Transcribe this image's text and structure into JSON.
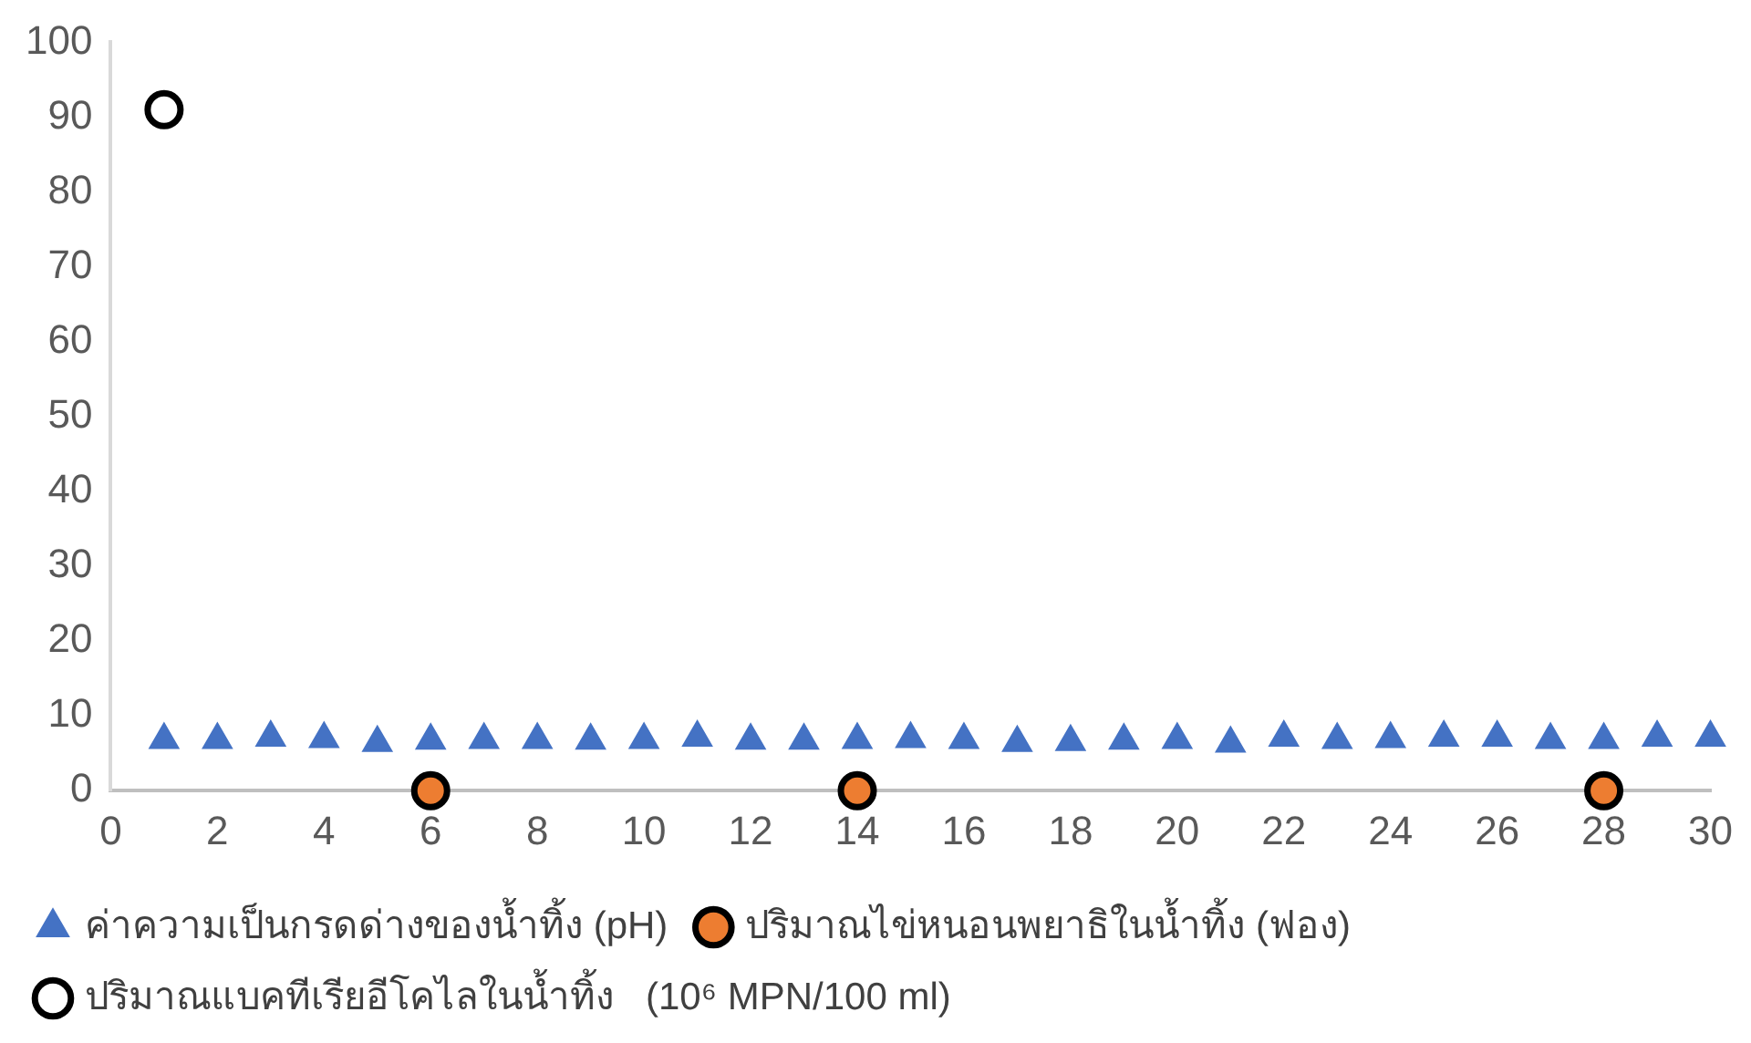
{
  "chart_data": {
    "type": "scatter",
    "xlim": [
      0,
      30
    ],
    "xticks": [
      0,
      2,
      4,
      6,
      8,
      10,
      12,
      14,
      16,
      18,
      20,
      22,
      24,
      26,
      28,
      30
    ],
    "ylim": [
      0,
      100
    ],
    "yticks": [
      0,
      10,
      20,
      30,
      40,
      50,
      60,
      70,
      80,
      90,
      100
    ],
    "grid": false,
    "legend": "bottom",
    "series": [
      {
        "name": "ค่าความเป็นกรดด่างของน้ำทิ้ง (pH)",
        "color": "#4472c4",
        "marker": "triangle",
        "x": [
          1,
          2,
          3,
          4,
          5,
          6,
          7,
          8,
          9,
          10,
          11,
          12,
          13,
          14,
          15,
          16,
          17,
          18,
          19,
          20,
          21,
          22,
          23,
          24,
          25,
          26,
          27,
          28,
          29,
          30
        ],
        "values": [
          6.8,
          6.8,
          7.1,
          6.9,
          6.4,
          6.7,
          6.8,
          6.8,
          6.7,
          6.8,
          7.1,
          6.7,
          6.7,
          6.8,
          6.9,
          6.8,
          6.4,
          6.5,
          6.7,
          6.8,
          6.3,
          7.1,
          6.8,
          6.9,
          7.1,
          7.1,
          6.8,
          6.8,
          7.1,
          7.1
        ]
      },
      {
        "name": "ปริมาณไข่หนอนพยาธิในน้ำทิ้ง (ฟอง)",
        "color": "#ed7d31",
        "marker": "circle",
        "x": [
          6,
          14,
          28
        ],
        "values": [
          0,
          0,
          0
        ]
      },
      {
        "name": "ปริมาณแบคทีเรียอีโคไลในน้ำทิ้ง   (10⁶ MPN/100 ml)",
        "color": "#000000",
        "marker": "circle",
        "x": [
          1
        ],
        "values": [
          91
        ]
      }
    ]
  }
}
